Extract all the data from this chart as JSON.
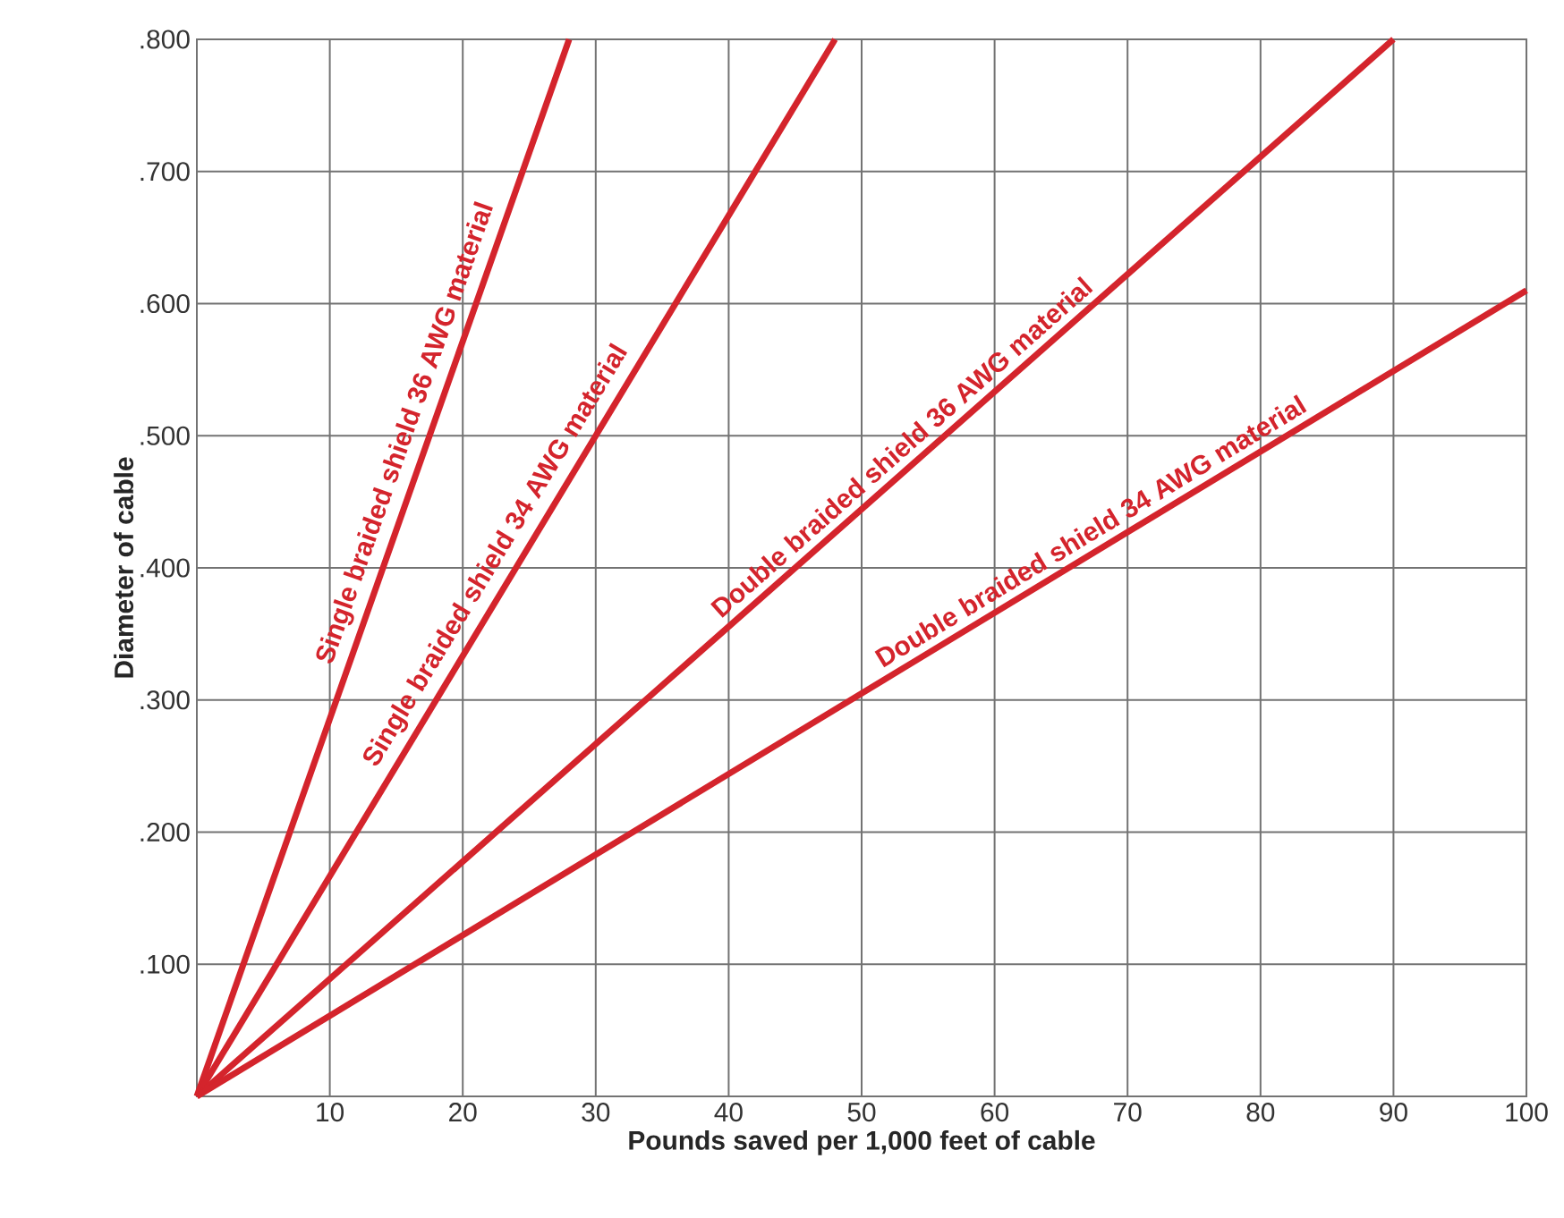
{
  "chart_data": {
    "type": "line",
    "xlabel": "Pounds saved per 1,000 feet of cable",
    "ylabel": "Diameter of cable",
    "xlim": [
      0,
      100
    ],
    "ylim": [
      0,
      0.8
    ],
    "xticks": [
      {
        "value": 0,
        "label": null
      },
      10,
      20,
      30,
      40,
      50,
      60,
      70,
      80,
      90,
      100
    ],
    "yticks": [
      {
        "value": 0,
        "label": null
      },
      {
        "value": 0.1,
        "label": ".100"
      },
      {
        "value": 0.2,
        "label": ".200"
      },
      {
        "value": 0.3,
        "label": ".300"
      },
      {
        "value": 0.4,
        "label": ".400"
      },
      {
        "value": 0.5,
        "label": ".500"
      },
      {
        "value": 0.6,
        "label": ".600"
      },
      {
        "value": 0.7,
        "label": ".700"
      },
      {
        "value": 0.8,
        "label": ".800"
      }
    ],
    "grid": true,
    "marker": "none",
    "line_style": "solid",
    "series": [
      {
        "name": "Single braided shield 36 AWG material",
        "color": "#d4242c",
        "x": [
          0,
          28
        ],
        "values": [
          0,
          0.8
        ]
      },
      {
        "name": "Single braided shield 34 AWG material",
        "color": "#d4242c",
        "x": [
          0,
          48
        ],
        "values": [
          0,
          0.8
        ]
      },
      {
        "name": "Double braided shield 36 AWG material",
        "color": "#d4242c",
        "x": [
          0,
          90
        ],
        "values": [
          0,
          0.8
        ]
      },
      {
        "name": "Double braided shield 34 AWG material",
        "color": "#d4242c",
        "x": [
          0,
          100
        ],
        "values": [
          0,
          0.61
        ]
      }
    ]
  }
}
